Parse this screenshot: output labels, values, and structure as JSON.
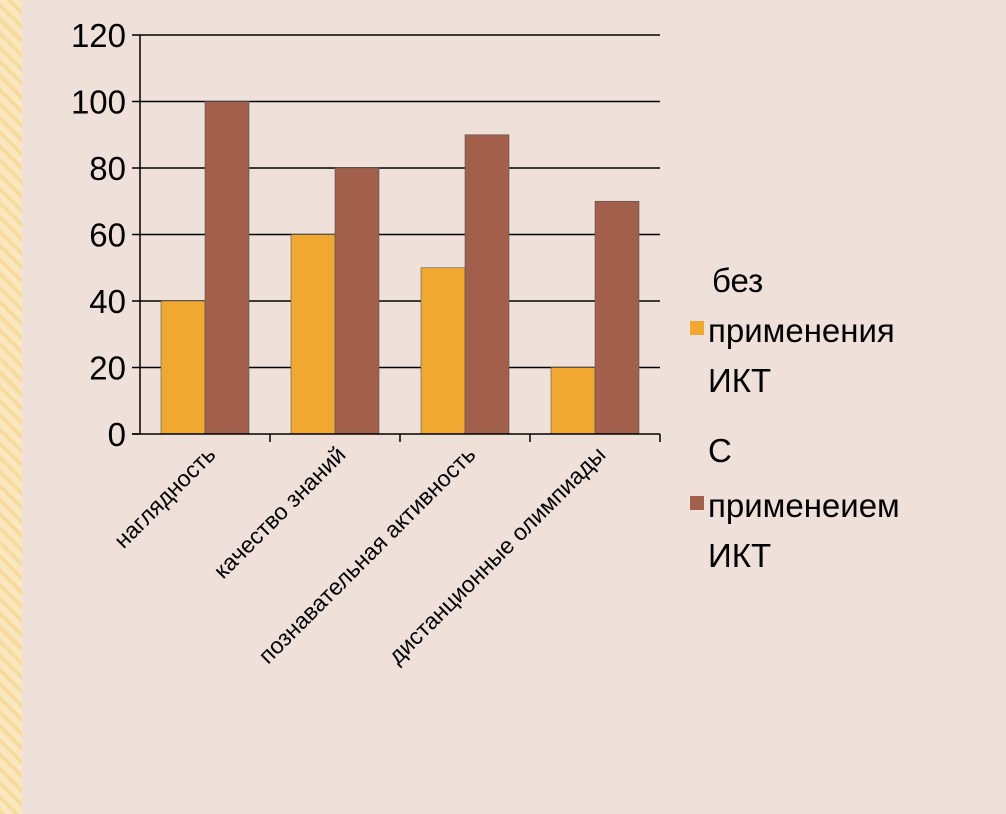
{
  "chart_data": {
    "type": "bar",
    "categories": [
      "наглядность",
      "качество знаний",
      "познавательная активность",
      "дистанционные олимпиады"
    ],
    "series": [
      {
        "name": "без применения ИКТ",
        "values": [
          40,
          60,
          50,
          20
        ],
        "color": "#f0a830"
      },
      {
        "name": "С применеием ИКТ",
        "values": [
          100,
          80,
          90,
          70
        ],
        "color": "#a25f4b"
      }
    ],
    "yticks": [
      0,
      20,
      40,
      60,
      80,
      100,
      120
    ],
    "ylim": [
      0,
      120
    ],
    "grid": true,
    "legend_position": "right"
  },
  "legend": {
    "series1_lines": [
      "без",
      "применения",
      "ИКТ"
    ],
    "series2_lines": [
      "С",
      "применеием",
      "ИКТ"
    ]
  }
}
